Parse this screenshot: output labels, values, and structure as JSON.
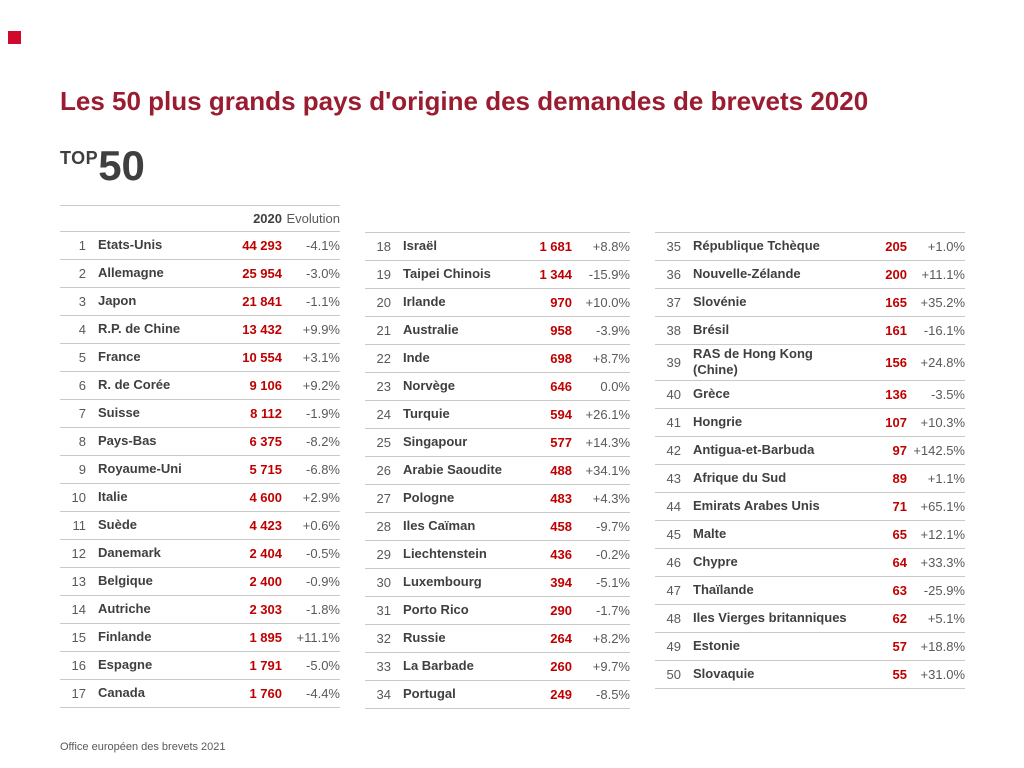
{
  "page": {
    "title": "Les 50 plus grands pays d'origine des demandes de brevets 2020",
    "top_label": "TOP",
    "top_number": "50",
    "footer": "Office européen des brevets 2021"
  },
  "colors": {
    "title": "#9a1c30",
    "value": "#c00000",
    "accent_square": "#cf0a2c"
  },
  "chart_data": {
    "type": "table",
    "title": "Les 50 plus grands pays d'origine des demandes de brevets 2020",
    "column_headers": {
      "value": "2020",
      "evolution": "Evolution"
    },
    "groups": [
      {
        "rows": [
          {
            "rank": 1,
            "country": "Etats-Unis",
            "value": "44 293",
            "evolution": "-4.1%"
          },
          {
            "rank": 2,
            "country": "Allemagne",
            "value": "25 954",
            "evolution": "-3.0%"
          },
          {
            "rank": 3,
            "country": "Japon",
            "value": "21 841",
            "evolution": "-1.1%"
          },
          {
            "rank": 4,
            "country": "R.P. de Chine",
            "value": "13 432",
            "evolution": "+9.9%"
          },
          {
            "rank": 5,
            "country": "France",
            "value": "10 554",
            "evolution": "+3.1%"
          },
          {
            "rank": 6,
            "country": "R. de Corée",
            "value": "9 106",
            "evolution": "+9.2%"
          },
          {
            "rank": 7,
            "country": "Suisse",
            "value": "8 112",
            "evolution": "-1.9%"
          },
          {
            "rank": 8,
            "country": "Pays-Bas",
            "value": "6 375",
            "evolution": "-8.2%"
          },
          {
            "rank": 9,
            "country": "Royaume-Uni",
            "value": "5 715",
            "evolution": "-6.8%"
          },
          {
            "rank": 10,
            "country": "Italie",
            "value": "4 600",
            "evolution": "+2.9%"
          },
          {
            "rank": 11,
            "country": "Suède",
            "value": "4 423",
            "evolution": "+0.6%"
          },
          {
            "rank": 12,
            "country": "Danemark",
            "value": "2 404",
            "evolution": "-0.5%"
          },
          {
            "rank": 13,
            "country": "Belgique",
            "value": "2 400",
            "evolution": "-0.9%"
          },
          {
            "rank": 14,
            "country": "Autriche",
            "value": "2 303",
            "evolution": "-1.8%"
          },
          {
            "rank": 15,
            "country": "Finlande",
            "value": "1 895",
            "evolution": "+11.1%"
          },
          {
            "rank": 16,
            "country": "Espagne",
            "value": "1 791",
            "evolution": "-5.0%"
          },
          {
            "rank": 17,
            "country": "Canada",
            "value": "1 760",
            "evolution": "-4.4%"
          }
        ]
      },
      {
        "rows": [
          {
            "rank": 18,
            "country": "Israël",
            "value": "1 681",
            "evolution": "+8.8%"
          },
          {
            "rank": 19,
            "country": "Taipei Chinois",
            "value": "1 344",
            "evolution": "-15.9%"
          },
          {
            "rank": 20,
            "country": "Irlande",
            "value": "970",
            "evolution": "+10.0%"
          },
          {
            "rank": 21,
            "country": "Australie",
            "value": "958",
            "evolution": "-3.9%"
          },
          {
            "rank": 22,
            "country": "Inde",
            "value": "698",
            "evolution": "+8.7%"
          },
          {
            "rank": 23,
            "country": "Norvège",
            "value": "646",
            "evolution": "0.0%"
          },
          {
            "rank": 24,
            "country": "Turquie",
            "value": "594",
            "evolution": "+26.1%"
          },
          {
            "rank": 25,
            "country": "Singapour",
            "value": "577",
            "evolution": "+14.3%"
          },
          {
            "rank": 26,
            "country": "Arabie Saoudite",
            "value": "488",
            "evolution": "+34.1%"
          },
          {
            "rank": 27,
            "country": "Pologne",
            "value": "483",
            "evolution": "+4.3%"
          },
          {
            "rank": 28,
            "country": "Iles Caïman",
            "value": "458",
            "evolution": "-9.7%"
          },
          {
            "rank": 29,
            "country": "Liechtenstein",
            "value": "436",
            "evolution": "-0.2%"
          },
          {
            "rank": 30,
            "country": "Luxembourg",
            "value": "394",
            "evolution": "-5.1%"
          },
          {
            "rank": 31,
            "country": "Porto Rico",
            "value": "290",
            "evolution": "-1.7%"
          },
          {
            "rank": 32,
            "country": "Russie",
            "value": "264",
            "evolution": "+8.2%"
          },
          {
            "rank": 33,
            "country": "La Barbade",
            "value": "260",
            "evolution": "+9.7%"
          },
          {
            "rank": 34,
            "country": "Portugal",
            "value": "249",
            "evolution": "-8.5%"
          }
        ]
      },
      {
        "rows": [
          {
            "rank": 35,
            "country": "République Tchèque",
            "value": "205",
            "evolution": "+1.0%"
          },
          {
            "rank": 36,
            "country": "Nouvelle-Zélande",
            "value": "200",
            "evolution": "+11.1%"
          },
          {
            "rank": 37,
            "country": "Slovénie",
            "value": "165",
            "evolution": "+35.2%"
          },
          {
            "rank": 38,
            "country": "Brésil",
            "value": "161",
            "evolution": "-16.1%"
          },
          {
            "rank": 39,
            "country": "RAS de Hong Kong (Chine)",
            "value": "156",
            "evolution": "+24.8%"
          },
          {
            "rank": 40,
            "country": "Grèce",
            "value": "136",
            "evolution": "-3.5%"
          },
          {
            "rank": 41,
            "country": "Hongrie",
            "value": "107",
            "evolution": "+10.3%"
          },
          {
            "rank": 42,
            "country": "Antigua-et-Barbuda",
            "value": "97",
            "evolution": "+142.5%"
          },
          {
            "rank": 43,
            "country": "Afrique du Sud",
            "value": "89",
            "evolution": "+1.1%"
          },
          {
            "rank": 44,
            "country": "Emirats Arabes Unis",
            "value": "71",
            "evolution": "+65.1%"
          },
          {
            "rank": 45,
            "country": "Malte",
            "value": "65",
            "evolution": "+12.1%"
          },
          {
            "rank": 46,
            "country": "Chypre",
            "value": "64",
            "evolution": "+33.3%"
          },
          {
            "rank": 47,
            "country": "Thaïlande",
            "value": "63",
            "evolution": "-25.9%"
          },
          {
            "rank": 48,
            "country": "Iles Vierges britanniques",
            "value": "62",
            "evolution": "+5.1%"
          },
          {
            "rank": 49,
            "country": "Estonie",
            "value": "57",
            "evolution": "+18.8%"
          },
          {
            "rank": 50,
            "country": "Slovaquie",
            "value": "55",
            "evolution": "+31.0%"
          }
        ]
      }
    ]
  }
}
